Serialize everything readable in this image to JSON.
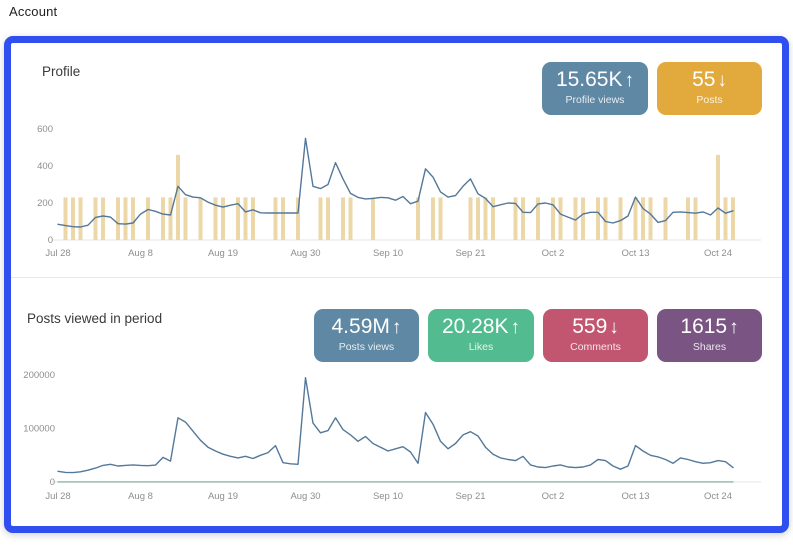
{
  "page": {
    "title": "Account"
  },
  "panels": {
    "profile": {
      "title": "Profile",
      "badges": [
        {
          "value": "15.65K",
          "arrow": "↑",
          "label": "Profile views",
          "color": "#5e88a4"
        },
        {
          "value": "55",
          "arrow": "↓",
          "label": "Posts",
          "color": "#e2a93d"
        }
      ]
    },
    "posts": {
      "title": "Posts viewed in period",
      "badges": [
        {
          "value": "4.59M",
          "arrow": "↑",
          "label": "Posts views",
          "color": "#5e88a4"
        },
        {
          "value": "20.28K",
          "arrow": "↑",
          "label": "Likes",
          "color": "#53bb90"
        },
        {
          "value": "559",
          "arrow": "↓",
          "label": "Comments",
          "color": "#c25670"
        },
        {
          "value": "1615",
          "arrow": "↑",
          "label": "Shares",
          "color": "#7a5583"
        }
      ]
    }
  },
  "chart_data": [
    {
      "type": "line",
      "title": "Profile",
      "n_points": 91,
      "x_tick_labels": [
        "Jul 28",
        "Aug 8",
        "Aug 19",
        "Aug 30",
        "Sep 10",
        "Sep 21",
        "Oct 2",
        "Oct 13",
        "Oct 24"
      ],
      "x_tick_indices": [
        0,
        11,
        22,
        33,
        44,
        55,
        66,
        77,
        88
      ],
      "ylim": [
        0,
        600
      ],
      "y_ticks": [
        0,
        200,
        400,
        600
      ],
      "grid": false,
      "legend": "none",
      "series": [
        {
          "name": "Profile views",
          "color": "#54789a",
          "values": [
            85,
            78,
            72,
            70,
            80,
            122,
            130,
            124,
            88,
            86,
            92,
            140,
            165,
            155,
            140,
            135,
            290,
            245,
            232,
            228,
            205,
            188,
            178,
            188,
            196,
            152,
            163,
            147,
            146,
            146,
            146,
            146,
            146,
            550,
            290,
            278,
            300,
            418,
            330,
            252,
            230,
            222,
            225,
            230,
            228,
            215,
            235,
            196,
            210,
            385,
            340,
            260,
            232,
            240,
            290,
            330,
            250,
            225,
            180,
            190,
            200,
            198,
            150,
            148,
            195,
            200,
            190,
            140,
            124,
            108,
            140,
            150,
            150,
            100,
            92,
            105,
            130,
            232,
            170,
            140,
            95,
            105,
            150,
            152,
            148,
            145,
            152,
            135,
            173,
            145,
            158
          ]
        }
      ],
      "bars": {
        "name": "Posts",
        "color": "#ecd7a8",
        "unit_value": 230,
        "posts_per_day": [
          0,
          1,
          1,
          1,
          0,
          1,
          1,
          0,
          1,
          1,
          1,
          0,
          1,
          0,
          1,
          1,
          2,
          1,
          0,
          1,
          0,
          1,
          1,
          0,
          1,
          1,
          1,
          0,
          0,
          1,
          1,
          0,
          1,
          0,
          0,
          1,
          1,
          0,
          1,
          1,
          0,
          0,
          1,
          0,
          0,
          0,
          0,
          0,
          1,
          0,
          1,
          1,
          0,
          0,
          0,
          1,
          1,
          1,
          1,
          0,
          0,
          1,
          1,
          0,
          1,
          0,
          1,
          1,
          0,
          1,
          1,
          0,
          1,
          1,
          0,
          1,
          0,
          1,
          1,
          1,
          0,
          1,
          0,
          0,
          1,
          1,
          0,
          0,
          2,
          1,
          1
        ]
      }
    },
    {
      "type": "line",
      "title": "Posts viewed in period",
      "n_points": 91,
      "x_tick_labels": [
        "Jul 28",
        "Aug 8",
        "Aug 19",
        "Aug 30",
        "Sep 10",
        "Sep 21",
        "Oct 2",
        "Oct 13",
        "Oct 24"
      ],
      "x_tick_indices": [
        0,
        11,
        22,
        33,
        44,
        55,
        66,
        77,
        88
      ],
      "ylim": [
        0,
        200000
      ],
      "y_ticks": [
        0,
        100000,
        200000
      ],
      "grid": false,
      "legend": "none",
      "series": [
        {
          "name": "Posts views",
          "color": "#54789a",
          "values": [
            20000,
            18000,
            17500,
            19000,
            22000,
            26000,
            31000,
            33000,
            30000,
            31000,
            32000,
            31000,
            30500,
            31500,
            46000,
            39000,
            120000,
            112000,
            95000,
            78000,
            65000,
            58000,
            52000,
            48000,
            45000,
            48000,
            44000,
            50000,
            55000,
            68000,
            36000,
            34000,
            33000,
            195000,
            110000,
            92000,
            96000,
            120000,
            98000,
            88000,
            76000,
            85000,
            72000,
            65000,
            58000,
            62000,
            66000,
            56000,
            35000,
            130000,
            108000,
            76000,
            62000,
            72000,
            88000,
            94000,
            86000,
            65000,
            52000,
            45000,
            42000,
            40000,
            48000,
            32000,
            28000,
            27000,
            30000,
            32000,
            28000,
            27000,
            28000,
            32000,
            42000,
            40000,
            30000,
            24000,
            30000,
            68000,
            58000,
            50000,
            47000,
            42000,
            35000,
            45000,
            42000,
            38000,
            35000,
            36000,
            40000,
            38000,
            27000
          ]
        },
        {
          "name": "Likes",
          "color": "#8fb3ae",
          "const_value": 220
        }
      ]
    }
  ]
}
